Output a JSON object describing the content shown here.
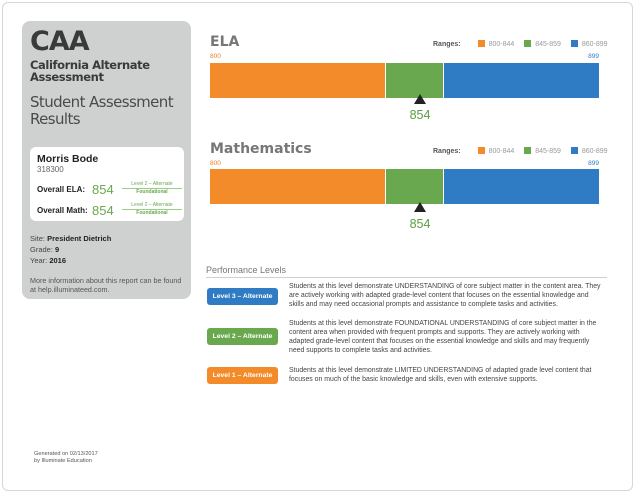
{
  "sidebar": {
    "caa": "CAA",
    "caa_full": "California Alternate Assessment",
    "report_title": "Student Assessment Results",
    "student": {
      "name": "Morris Bode",
      "id": "318300",
      "ela_label": "Overall ELA:",
      "ela_score": "854",
      "ela_level": "Level 2 – Alternate",
      "ela_level_name": "Foundational",
      "math_label": "Overall Math:",
      "math_score": "854",
      "math_level": "Level 2 – Alternate",
      "math_level_name": "Foundational"
    },
    "site_label": "Site:",
    "site": "President Dietrich",
    "grade_label": "Grade:",
    "grade": "9",
    "year_label": "Year:",
    "year": "2016",
    "more_info": "More information about this report can be found at help.illuminateed.com."
  },
  "colors": {
    "level1": "#f38b2a",
    "level2": "#6aa84f",
    "level3": "#2f7cc4"
  },
  "charts": {
    "ranges_label": "Ranges:",
    "range1": "800-844",
    "range2": "845-859",
    "range3": "860-899",
    "ela": {
      "title": "ELA",
      "min": "800",
      "max": "899",
      "score": "854"
    },
    "math": {
      "title": "Mathematics",
      "min": "800",
      "max": "899",
      "score": "854"
    }
  },
  "chart_data": [
    {
      "type": "bar",
      "title": "ELA",
      "segments": [
        {
          "range": "800-844",
          "from": 800,
          "to": 845,
          "color": "#f38b2a"
        },
        {
          "range": "845-859",
          "from": 845,
          "to": 860,
          "color": "#6aa84f"
        },
        {
          "range": "860-899",
          "from": 860,
          "to": 900,
          "color": "#2f7cc4"
        }
      ],
      "xlim": [
        800,
        899
      ],
      "score": 854
    },
    {
      "type": "bar",
      "title": "Mathematics",
      "segments": [
        {
          "range": "800-844",
          "from": 800,
          "to": 845,
          "color": "#f38b2a"
        },
        {
          "range": "845-859",
          "from": 845,
          "to": 860,
          "color": "#6aa84f"
        },
        {
          "range": "860-899",
          "from": 860,
          "to": 900,
          "color": "#2f7cc4"
        }
      ],
      "xlim": [
        800,
        899
      ],
      "score": 854
    }
  ],
  "performance": {
    "title": "Performance Levels",
    "levels": [
      {
        "label": "Level 3 – Alternate",
        "desc": "Students at this level demonstrate UNDERSTANDING of core subject matter in the content area. They are actively working with adapted grade-level content that focuses on the essential knowledge and skills and may need occasional prompts and assistance to complete tasks and activities."
      },
      {
        "label": "Level 2 – Alternate",
        "desc": "Students at this level demonstrate FOUNDATIONAL UNDERSTANDING of core subject matter in the content area when provided with frequent prompts and supports. They are actively working with adapted grade-level content that focuses on the essential knowledge and skills and may frequently need supports to complete tasks and activities."
      },
      {
        "label": "Level 1 – Alternate",
        "desc": "Students at this level demonstrate LIMITED UNDERSTANDING of adapted grade level content that focuses on much of the basic knowledge and skills, even with extensive supports."
      }
    ]
  },
  "footer": {
    "generated": "Generated on 02/13/2017",
    "by": "by Illuminate Education"
  }
}
